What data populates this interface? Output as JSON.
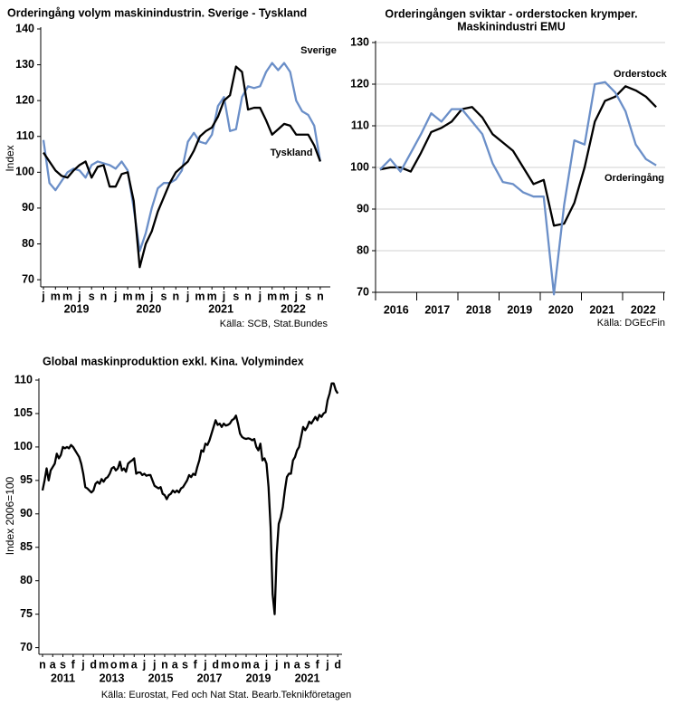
{
  "chart_data": [
    {
      "type": "line",
      "title": "Orderingång volym maskinindustrin. Sverige - Tyskland",
      "y_label": "Index",
      "source": "Källa: SCB, Stat.Bundes",
      "categories": [
        "j",
        null,
        "m",
        null,
        "m",
        null,
        "j",
        null,
        "s",
        null,
        "n",
        null,
        "j",
        null,
        "m",
        null,
        "m",
        null,
        "j",
        null,
        "s",
        null,
        "n",
        null,
        "j",
        null,
        "m",
        null,
        "m",
        null,
        "j",
        null,
        "s",
        null,
        "n",
        null,
        "j",
        null,
        "m",
        null,
        "m",
        null,
        "j",
        null,
        "s",
        null,
        "n"
      ],
      "years": [
        "2019",
        "2020",
        "2021",
        "2022"
      ],
      "series": [
        {
          "name": "Sverige",
          "color": "#6b8fc8",
          "values": [
            109,
            97,
            95,
            97.5,
            100,
            101,
            100.5,
            98.5,
            102,
            103,
            102.5,
            102,
            101,
            103,
            100.5,
            90,
            78,
            83,
            90,
            95.5,
            97,
            97,
            98,
            100.5,
            108.5,
            111,
            108.5,
            108,
            110.5,
            118.5,
            121,
            111.5,
            112,
            121,
            124,
            123.5,
            124,
            128,
            130.5,
            128.5,
            130.5,
            128,
            120,
            117,
            116,
            113,
            103
          ]
        },
        {
          "name": "Tyskland",
          "color": "#000000",
          "values": [
            105.5,
            103,
            100.5,
            99,
            98.5,
            100.5,
            102,
            103,
            98.5,
            101.5,
            102,
            96,
            96,
            99.5,
            100,
            92,
            73.5,
            80,
            83.5,
            89,
            93,
            97,
            100,
            101.5,
            103,
            106,
            110,
            111.5,
            112.5,
            115.5,
            120,
            121.5,
            129.5,
            128,
            117.5,
            118,
            118,
            114.5,
            110.5,
            112,
            113.5,
            113,
            110.5,
            110.5,
            110.5,
            107.5,
            103
          ]
        }
      ],
      "ylim": [
        68,
        140
      ],
      "yticks": [
        70,
        80,
        90,
        100,
        110,
        120,
        130,
        140
      ],
      "grid": false
    },
    {
      "type": "line",
      "title": "Orderingången sviktar - orderstocken krymper.",
      "subtitle": "Maskinindustri EMU",
      "source": "Källa: DGEcFin",
      "years": [
        "2016",
        "2017",
        "2018",
        "2019",
        "2020",
        "2021",
        "2022"
      ],
      "series": [
        {
          "name": "Orderstock",
          "color": "#000000",
          "values": [
            99.5,
            100,
            100,
            99,
            103.5,
            108.5,
            109.5,
            111,
            114,
            114.5,
            112,
            108,
            106,
            104,
            100,
            96,
            97,
            86,
            86.5,
            91.5,
            100,
            111,
            116,
            117,
            119.5,
            118.5,
            117,
            114.5
          ]
        },
        {
          "name": "Orderingång",
          "color": "#6b8fc8",
          "values": [
            99.5,
            102,
            99,
            103.5,
            108,
            113,
            111,
            114,
            114,
            111,
            108,
            101,
            96.5,
            96,
            94,
            93,
            93,
            69.5,
            91,
            106.5,
            105.5,
            120,
            120.5,
            118,
            113.5,
            105.5,
            102,
            100.5
          ]
        }
      ],
      "ylim": [
        70,
        130
      ],
      "yticks": [
        70,
        80,
        90,
        100,
        110,
        120,
        130
      ],
      "grid": true
    },
    {
      "type": "line",
      "title": "Global maskinproduktion exkl. Kina. Volymindex",
      "y_label": "Index 2006=100",
      "source": "Källa: Eurostat, Fed och Nat Stat. Bearb.Teknikföretagen",
      "categories": [
        "n",
        null,
        null,
        null,
        null,
        "a",
        null,
        null,
        null,
        null,
        "s",
        null,
        null,
        null,
        null,
        "f",
        null,
        null,
        null,
        null,
        "j",
        null,
        null,
        null,
        null,
        "d",
        null,
        null,
        null,
        null,
        "m",
        null,
        null,
        null,
        null,
        "o",
        null,
        null,
        null,
        null,
        "m",
        null,
        null,
        null,
        null,
        "a",
        null,
        null,
        null,
        null,
        "j",
        null,
        null,
        null,
        null,
        "j",
        null,
        null,
        null,
        null,
        "n",
        null,
        null,
        null,
        null,
        "a",
        null,
        null,
        null,
        null,
        "s",
        null,
        null,
        null,
        null,
        "f",
        null,
        null,
        null,
        null,
        "j",
        null,
        null,
        null,
        null,
        "d",
        null,
        null,
        null,
        null,
        "m",
        null,
        null,
        null,
        null,
        "o",
        null,
        null,
        null,
        null,
        "m",
        null,
        null,
        null,
        null,
        "a",
        null,
        null,
        null,
        null,
        "j",
        null,
        null,
        null,
        null,
        "j",
        null,
        null,
        null,
        null,
        "n",
        null,
        null,
        null,
        null,
        "a",
        null,
        null,
        null,
        null,
        "s",
        null,
        null,
        null,
        null,
        "f",
        null,
        null,
        null,
        null,
        "j",
        null,
        null,
        null,
        null,
        "d"
      ],
      "years": [
        "2011",
        "2013",
        "2015",
        "2017",
        "2019",
        "2021"
      ],
      "series": [
        {
          "name": "Global",
          "color": "#000000",
          "values": [
            93.5,
            95,
            96.8,
            95,
            96.5,
            97,
            97.5,
            99,
            98.3,
            98.8,
            100,
            99.8,
            100,
            99.8,
            100.3,
            100,
            99.5,
            99,
            98.5,
            97.5,
            96,
            94,
            93.8,
            93.5,
            93.2,
            93.5,
            94.5,
            94.8,
            94.5,
            95.2,
            94.8,
            95.3,
            95.5,
            96,
            96.8,
            97,
            96.5,
            96.8,
            97.8,
            96.5,
            96.8,
            96.3,
            97.5,
            97.8,
            98,
            98.3,
            96,
            96.2,
            96.2,
            95.8,
            96,
            95.7,
            95.8,
            95.8,
            95,
            94.2,
            94,
            93.8,
            94,
            93,
            92.8,
            92.2,
            92.8,
            93,
            93.5,
            93.2,
            93.5,
            93.2,
            93.8,
            94,
            94.5,
            95,
            95.8,
            95.5,
            96,
            95.8,
            97,
            98,
            99.5,
            99.3,
            100.5,
            100.3,
            101,
            102,
            103,
            104,
            103.3,
            103.5,
            103,
            103.5,
            103.2,
            103.3,
            103.5,
            104,
            104.2,
            104.7,
            103.5,
            102,
            101.5,
            101.3,
            101.2,
            101.3,
            101.2,
            101,
            101.2,
            100,
            99.5,
            100.5,
            98,
            98.3,
            97.5,
            94,
            88,
            78,
            75,
            84,
            88.5,
            89.5,
            91,
            93.5,
            95.5,
            96,
            96,
            98,
            98.5,
            99.5,
            100,
            101.5,
            103,
            102.5,
            103,
            103.8,
            103.5,
            104,
            104.5,
            104,
            104.8,
            104.5,
            105,
            105.2,
            107,
            108,
            109.5,
            109.5,
            108.5,
            108
          ]
        }
      ],
      "ylim": [
        69,
        110
      ],
      "yticks": [
        70,
        75,
        80,
        85,
        90,
        95,
        100,
        105,
        110
      ],
      "grid": false
    }
  ]
}
